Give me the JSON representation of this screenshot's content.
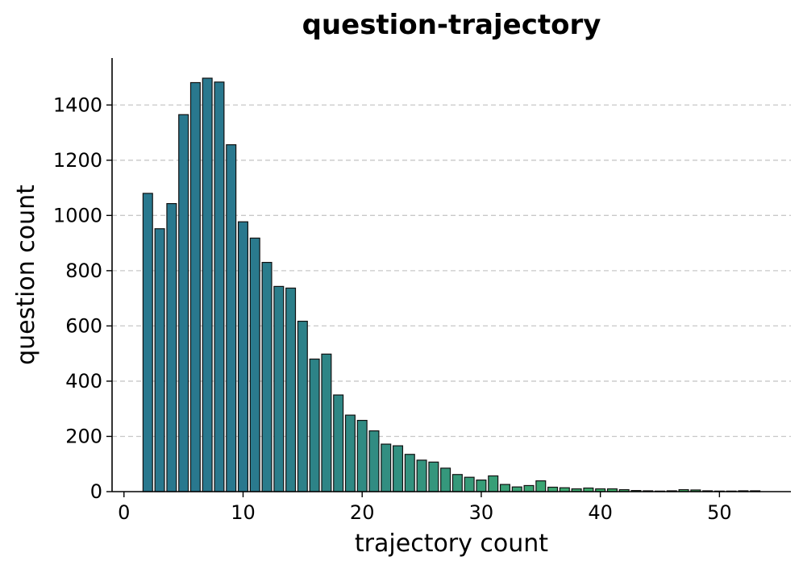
{
  "chart_data": {
    "type": "bar",
    "title": "question-trajectory",
    "xlabel": "trajectory count",
    "ylabel": "question count",
    "xlim": [
      -1,
      56
    ],
    "ylim": [
      0,
      1570
    ],
    "xticks": [
      0,
      10,
      20,
      30,
      40,
      50
    ],
    "yticks": [
      0,
      200,
      400,
      600,
      800,
      1000,
      1200,
      1400
    ],
    "grid": "y-dashed",
    "x": [
      2,
      3,
      4,
      5,
      6,
      7,
      8,
      9,
      10,
      11,
      12,
      13,
      14,
      15,
      16,
      17,
      18,
      19,
      20,
      21,
      22,
      23,
      24,
      25,
      26,
      27,
      28,
      29,
      30,
      31,
      32,
      33,
      34,
      35,
      36,
      37,
      38,
      39,
      40,
      41,
      42,
      43,
      44,
      45,
      46,
      47,
      48,
      49,
      50,
      51,
      52,
      53
    ],
    "values": [
      1080,
      952,
      1043,
      1365,
      1481,
      1497,
      1483,
      1256,
      977,
      918,
      830,
      743,
      737,
      617,
      480,
      498,
      350,
      277,
      258,
      220,
      172,
      166,
      135,
      114,
      107,
      85,
      62,
      52,
      42,
      57,
      26,
      17,
      22,
      39,
      16,
      14,
      10,
      13,
      10,
      10,
      7,
      4,
      3,
      2,
      3,
      7,
      6,
      3,
      2,
      2,
      3,
      3
    ]
  }
}
